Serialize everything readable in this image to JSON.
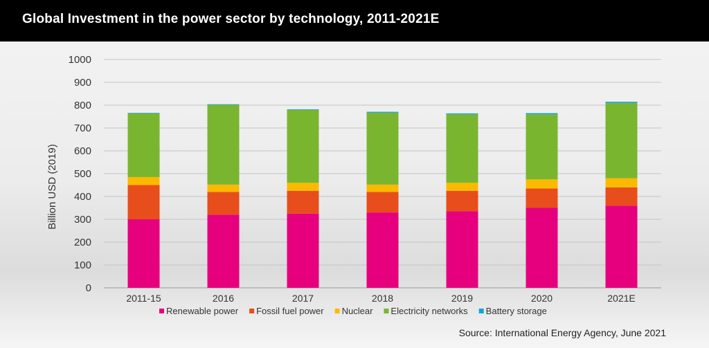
{
  "header": {
    "title": "Global Investment in the power sector by technology, 2011-2021E"
  },
  "source": "Source: International Energy Agency, June 2021",
  "chart_data": {
    "type": "bar",
    "stacked": true,
    "title": "Global Investment in the power sector by technology, 2011-2021E",
    "xlabel": "",
    "ylabel": "Billion USD (2019)",
    "ylim": [
      0,
      1000
    ],
    "yticks": [
      0,
      100,
      200,
      300,
      400,
      500,
      600,
      700,
      800,
      900,
      1000
    ],
    "grid": true,
    "legend": "bottom",
    "categories": [
      "2011-15",
      "2016",
      "2017",
      "2018",
      "2019",
      "2020",
      "2021E"
    ],
    "series": [
      {
        "name": "Renewable power",
        "color": "#e6007e",
        "values": [
          300,
          320,
          325,
          330,
          335,
          350,
          360
        ]
      },
      {
        "name": "Fossil fuel power",
        "color": "#e84e1b",
        "values": [
          150,
          100,
          100,
          90,
          90,
          85,
          80
        ]
      },
      {
        "name": "Nuclear",
        "color": "#fbba00",
        "values": [
          35,
          32,
          35,
          32,
          35,
          40,
          40
        ]
      },
      {
        "name": "Electricity networks",
        "color": "#7ab530",
        "values": [
          280,
          350,
          320,
          315,
          300,
          285,
          330
        ]
      },
      {
        "name": "Battery storage",
        "color": "#0fa4df",
        "values": [
          1,
          2,
          2,
          4,
          4,
          5,
          5
        ]
      }
    ]
  }
}
